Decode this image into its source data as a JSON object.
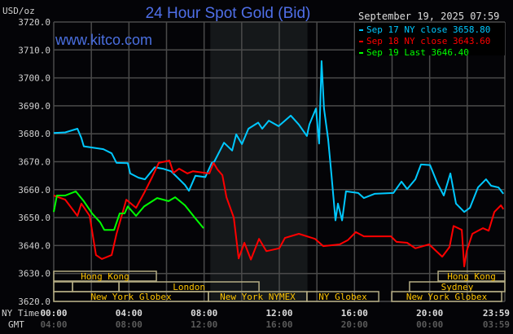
{
  "chart_data": {
    "type": "line",
    "title": "24 Hour Spot Gold (Bid)",
    "ylabel": "USD/oz",
    "watermark": "www.kitco.com",
    "timestamp": "September 19, 2025 07:59",
    "ylim": [
      3620,
      3720
    ],
    "yticks": [
      "3720.0",
      "3710.0",
      "3700.0",
      "3690.0",
      "3680.0",
      "3670.0",
      "3660.0",
      "3650.0",
      "3640.0",
      "3630.0",
      "3620.0"
    ],
    "xlim_hours": [
      0,
      24
    ],
    "grid": true,
    "legend_position": "top-right",
    "x_row_labels": {
      "ny": "NY Time",
      "gmt": "GMT"
    },
    "xticks": [
      {
        "hour": 0,
        "ny": "00:00",
        "gmt": "04:00"
      },
      {
        "hour": 4,
        "ny": "04:00",
        "gmt": "08:00"
      },
      {
        "hour": 8,
        "ny": "08:00",
        "gmt": "12:00"
      },
      {
        "hour": 12,
        "ny": "12:00",
        "gmt": "16:00"
      },
      {
        "hour": 16,
        "ny": "16:00",
        "gmt": "20:00"
      },
      {
        "hour": 20,
        "ny": "20:00",
        "gmt": "00:00"
      },
      {
        "hour": 23.98,
        "ny": "23:59",
        "gmt": "03:59"
      }
    ],
    "highlight_hours": [
      8.33,
      13.5
    ],
    "series": [
      {
        "name": "Sep 17 NY close 3658.80",
        "color": "#00c8ff",
        "points": [
          [
            0,
            3680.3
          ],
          [
            0.61,
            3680.5
          ],
          [
            1.26,
            3681.8
          ],
          [
            1.47,
            3678.5
          ],
          [
            1.6,
            3675.5
          ],
          [
            2.64,
            3674.5
          ],
          [
            3.08,
            3673
          ],
          [
            3.34,
            3669.6
          ],
          [
            3.94,
            3669.5
          ],
          [
            4.07,
            3665.8
          ],
          [
            4.51,
            3664.3
          ],
          [
            4.85,
            3663.7
          ],
          [
            5.37,
            3668
          ],
          [
            5.81,
            3667.5
          ],
          [
            6.24,
            3666.6
          ],
          [
            6.54,
            3664.6
          ],
          [
            6.98,
            3661.7
          ],
          [
            7.19,
            3659.6
          ],
          [
            7.54,
            3665
          ],
          [
            8.06,
            3664.5
          ],
          [
            8.41,
            3669.6
          ],
          [
            8.54,
            3670
          ],
          [
            9.06,
            3676.8
          ],
          [
            9.49,
            3674
          ],
          [
            9.71,
            3679.8
          ],
          [
            10.01,
            3676.3
          ],
          [
            10.36,
            3681.8
          ],
          [
            10.88,
            3684
          ],
          [
            11.09,
            3681.8
          ],
          [
            11.44,
            3684.7
          ],
          [
            11.96,
            3682.7
          ],
          [
            12.61,
            3686.5
          ],
          [
            13.04,
            3683.3
          ],
          [
            13.47,
            3679.2
          ],
          [
            13.6,
            3683.3
          ],
          [
            13.95,
            3689
          ],
          [
            14.12,
            3676.5
          ],
          [
            14.25,
            3706
          ],
          [
            14.38,
            3689
          ],
          [
            14.6,
            3678
          ],
          [
            14.77,
            3665.8
          ],
          [
            14.99,
            3649
          ],
          [
            15.12,
            3655
          ],
          [
            15.34,
            3649
          ],
          [
            15.55,
            3659.4
          ],
          [
            16.2,
            3658.8
          ],
          [
            16.5,
            3657
          ],
          [
            17.07,
            3658.5
          ],
          [
            18.07,
            3658.8
          ],
          [
            18.5,
            3662.9
          ],
          [
            18.8,
            3660.2
          ],
          [
            19.24,
            3663.7
          ],
          [
            19.54,
            3669
          ],
          [
            20.02,
            3668.8
          ],
          [
            20.41,
            3662.3
          ],
          [
            20.75,
            3657.9
          ],
          [
            21.1,
            3665.8
          ],
          [
            21.4,
            3655
          ],
          [
            21.84,
            3652
          ],
          [
            22.14,
            3653.5
          ],
          [
            22.57,
            3660.8
          ],
          [
            23.0,
            3663.7
          ],
          [
            23.27,
            3661.4
          ],
          [
            23.66,
            3660.8
          ],
          [
            23.92,
            3658.5
          ]
        ]
      },
      {
        "name": "Sep 18 NY close 3643.60",
        "color": "#ff0000",
        "points": [
          [
            0,
            3657.9
          ],
          [
            0.61,
            3656.4
          ],
          [
            1.26,
            3650.6
          ],
          [
            1.47,
            3655
          ],
          [
            1.91,
            3650.6
          ],
          [
            2.25,
            3636.6
          ],
          [
            2.56,
            3635.2
          ],
          [
            3.08,
            3636.6
          ],
          [
            3.34,
            3644.2
          ],
          [
            3.86,
            3656.4
          ],
          [
            4.38,
            3653.5
          ],
          [
            4.81,
            3658.8
          ],
          [
            5.24,
            3664.6
          ],
          [
            5.59,
            3669.6
          ],
          [
            6.15,
            3670.4
          ],
          [
            6.37,
            3666
          ],
          [
            6.67,
            3667.5
          ],
          [
            7.11,
            3665.8
          ],
          [
            7.41,
            3666.6
          ],
          [
            8.28,
            3665.8
          ],
          [
            8.5,
            3669.6
          ],
          [
            8.71,
            3667.2
          ],
          [
            8.97,
            3665.2
          ],
          [
            9.19,
            3657.3
          ],
          [
            9.58,
            3650
          ],
          [
            9.84,
            3635.4
          ],
          [
            10.14,
            3641
          ],
          [
            10.49,
            3635
          ],
          [
            10.92,
            3642.4
          ],
          [
            11.31,
            3638
          ],
          [
            12.0,
            3639
          ],
          [
            12.3,
            3642.7
          ],
          [
            13.04,
            3644.2
          ],
          [
            13.9,
            3642.4
          ],
          [
            14.34,
            3639.8
          ],
          [
            15.21,
            3640.4
          ],
          [
            15.64,
            3641.9
          ],
          [
            16.07,
            3644.8
          ],
          [
            16.5,
            3643.3
          ],
          [
            17.94,
            3643.3
          ],
          [
            18.24,
            3641.3
          ],
          [
            18.8,
            3641
          ],
          [
            19.24,
            3639
          ],
          [
            19.97,
            3640.4
          ],
          [
            20.67,
            3636
          ],
          [
            21.06,
            3639.5
          ],
          [
            21.27,
            3647
          ],
          [
            21.71,
            3645.6
          ],
          [
            21.84,
            3632.5
          ],
          [
            21.97,
            3638
          ],
          [
            22.27,
            3644.2
          ],
          [
            22.83,
            3646.2
          ],
          [
            23.14,
            3645.3
          ],
          [
            23.44,
            3652
          ],
          [
            23.79,
            3654.4
          ],
          [
            23.92,
            3653
          ]
        ]
      },
      {
        "name": "Sep 19 Last 3646.40",
        "color": "#00ff00",
        "points": [
          [
            0,
            3652
          ],
          [
            0.17,
            3657.9
          ],
          [
            0.61,
            3657.9
          ],
          [
            1.17,
            3659.4
          ],
          [
            1.6,
            3655.9
          ],
          [
            2.04,
            3651.5
          ],
          [
            2.47,
            3648.3
          ],
          [
            2.69,
            3645.6
          ],
          [
            3.21,
            3645.6
          ],
          [
            3.51,
            3651.5
          ],
          [
            3.77,
            3651.5
          ],
          [
            3.94,
            3654
          ],
          [
            4.38,
            3650.6
          ],
          [
            4.81,
            3654
          ],
          [
            5.5,
            3657
          ],
          [
            6.11,
            3655.9
          ],
          [
            6.46,
            3657.3
          ],
          [
            6.98,
            3654.4
          ],
          [
            7.54,
            3649.7
          ],
          [
            7.97,
            3646.2
          ]
        ]
      }
    ],
    "sessions": [
      {
        "row": 0,
        "label": "Hong Kong",
        "start": 0,
        "end": 5.46
      },
      {
        "row": 0,
        "label": "Hong Kong",
        "start": 20.45,
        "end": 24
      },
      {
        "row": 1,
        "label": "",
        "start": 0,
        "end": 1.0
      },
      {
        "row": 1,
        "label": "",
        "start": 1.0,
        "end": 3.47
      },
      {
        "row": 1,
        "label": "London",
        "start": 3.47,
        "end": 10.92
      },
      {
        "row": 1,
        "label": "Sydney",
        "start": 18.93,
        "end": 24
      },
      {
        "row": 2,
        "label": "New York Globex",
        "start": 0,
        "end": 8.23
      },
      {
        "row": 2,
        "label": "New York NYMEX",
        "start": 8.23,
        "end": 13.47
      },
      {
        "row": 2,
        "label": "NY Globex",
        "start": 13.47,
        "end": 17.29
      },
      {
        "row": 2,
        "label": "New York Globex",
        "start": 17.98,
        "end": 23.83
      }
    ]
  },
  "colors": {
    "title": "#4f6fe8",
    "session_border": "#b5ad84",
    "session_text": "#ffc400",
    "grid": "#4a4a4a",
    "highlight": "#15181a"
  }
}
